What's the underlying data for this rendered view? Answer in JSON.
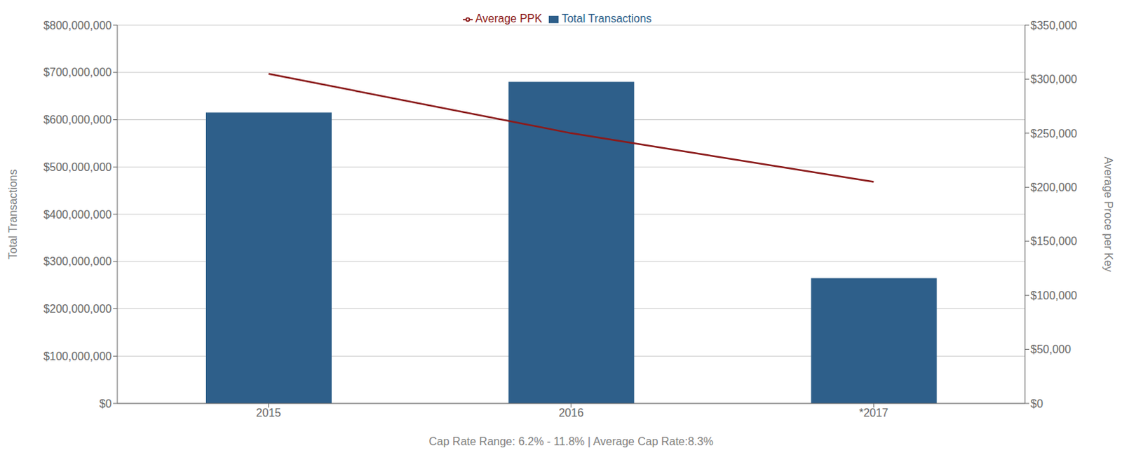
{
  "chart_data": {
    "type": "bar",
    "categories": [
      "2015",
      "2016",
      "*2017"
    ],
    "series": [
      {
        "name": "Total Transactions",
        "type": "bar",
        "color": "#2e5f8a",
        "values": [
          615000000,
          680000000,
          265000000
        ]
      },
      {
        "name": "Average PPK",
        "type": "line",
        "color": "#8b1a1a",
        "axis": "y2",
        "values": [
          305000,
          250000,
          205000
        ]
      }
    ],
    "ylabel": "Total Transactions",
    "y2label": "Average Proce per Key",
    "xlabel": "Cap Rate Range: 6.2% - 11.8% | Average Cap Rate:8.3%",
    "ylim": [
      0,
      800000000
    ],
    "yticks": [
      {
        "value": 0,
        "label": "$0"
      },
      {
        "value": 100000000,
        "label": "$100,000,000"
      },
      {
        "value": 200000000,
        "label": "$200,000,000"
      },
      {
        "value": 300000000,
        "label": "$300,000,000"
      },
      {
        "value": 400000000,
        "label": "$400,000,000"
      },
      {
        "value": 500000000,
        "label": "$500,000,000"
      },
      {
        "value": 600000000,
        "label": "$600,000,000"
      },
      {
        "value": 700000000,
        "label": "$700,000,000"
      },
      {
        "value": 800000000,
        "label": "$800,000,000"
      }
    ],
    "y2lim": [
      0,
      350000
    ],
    "y2ticks": [
      {
        "value": 0,
        "label": "$0"
      },
      {
        "value": 50000,
        "label": "$50,000"
      },
      {
        "value": 100000,
        "label": "$100,000"
      },
      {
        "value": 150000,
        "label": "$150,000"
      },
      {
        "value": 200000,
        "label": "$200,000"
      },
      {
        "value": 250000,
        "label": "$250,000"
      },
      {
        "value": 300000,
        "label": "$300,000"
      },
      {
        "value": 350000,
        "label": "$350,000"
      }
    ],
    "grid": true,
    "legend": "top"
  }
}
